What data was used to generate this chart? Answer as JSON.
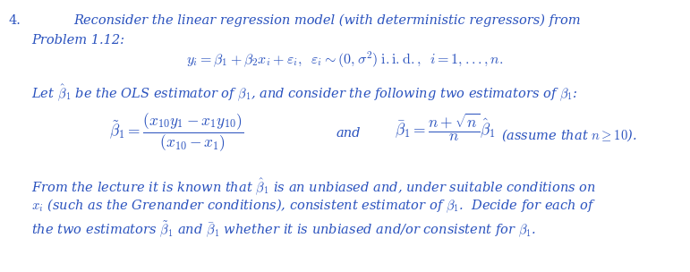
{
  "background_color": "#ffffff",
  "text_color": "#2a52be",
  "fig_width": 7.71,
  "fig_height": 3.04,
  "font_size": 10.5,
  "math_font_size": 11.5,
  "number_label": "4.",
  "line1": "Reconsider the linear regression model (with deterministic regressors) from",
  "line2": "Problem 1.12:",
  "line4_text": "From the lecture it is known that",
  "line4b": " is an unbiased and, under suitable conditions on",
  "line5": "(such as the Grenander conditions), consistent estimator of",
  "line5b": ".  Decide for each of",
  "line6": "the two estimators",
  "line6c": "whether it is unbiased and/or consistent for",
  "and_text": "and",
  "assume_text": "(assume that"
}
